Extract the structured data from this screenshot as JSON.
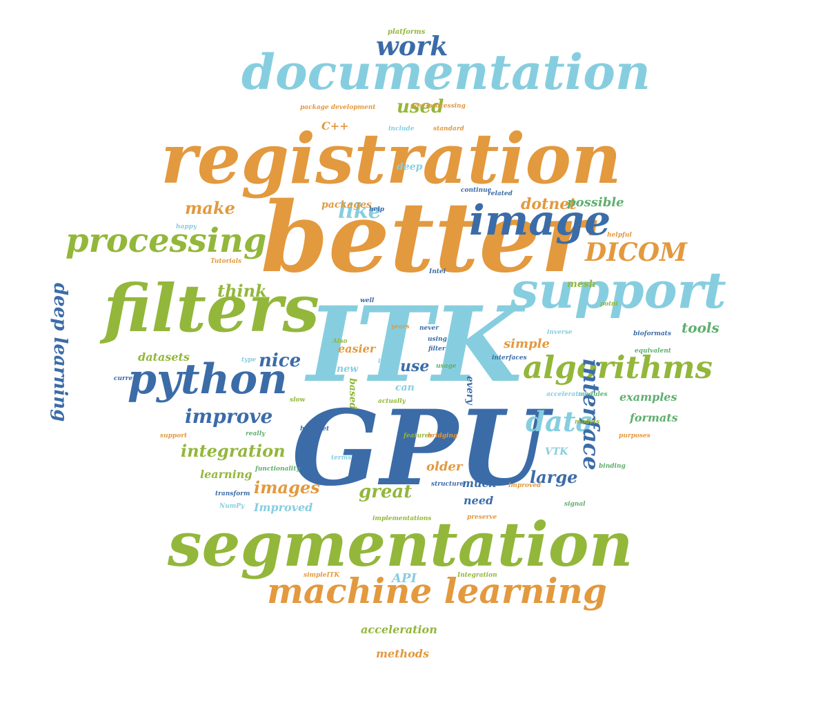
{
  "colors": {
    "orange": "#E3993E",
    "green": "#93B73B",
    "light_blue": "#86CEDF",
    "dark_blue": "#3B6CA8",
    "teal_green": "#5FAE6E"
  },
  "words": [
    "GPU",
    "ITK",
    "better",
    "registration",
    "segmentation",
    "filters",
    "support",
    "documentation",
    "image",
    "python",
    "processing",
    "machine learning",
    "algorithms",
    "work",
    "DICOM",
    "data",
    "interface",
    "used",
    "like",
    "make",
    "dotnet",
    "possible",
    "packages",
    "deep",
    "C++",
    "think",
    "tools",
    "nice",
    "use",
    "easier",
    "new",
    "datasets",
    "deep learning",
    "improve",
    "integration",
    "learning",
    "images",
    "great",
    "large",
    "older",
    "much",
    "need",
    "Improved",
    "API",
    "acceleration",
    "methods",
    "simple",
    "examples",
    "formats",
    "mesh",
    "VTK",
    "every",
    "can",
    "based",
    "platforms",
    "package development",
    "post-processing",
    "include",
    "standard",
    "continue",
    "related",
    "help",
    "helpful",
    "happy",
    "Tutorials",
    "Intel",
    "point",
    "well",
    "bioformats",
    "equivalent",
    "inverse",
    "never",
    "using",
    "filter",
    "usage",
    "interfaces",
    "Also",
    "type",
    "current",
    "slow",
    "modules",
    "accelerated",
    "models",
    "support",
    "really",
    "features",
    "hard-set",
    "bridging",
    "purposes",
    "terms",
    "binding",
    "functionality",
    "transform",
    "structure",
    "improved",
    "signal",
    "NumPy",
    "implementations",
    "preserve",
    "simpleITK",
    "Integration",
    "itk.js",
    "years",
    "actually"
  ]
}
